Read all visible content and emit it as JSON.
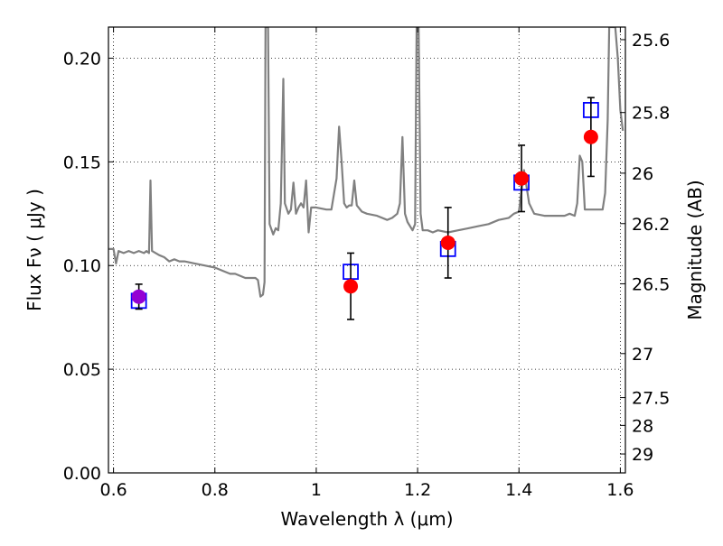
{
  "chart_data": {
    "type": "scatter",
    "title": "",
    "xlabel": "Wavelength  λ (μm)",
    "ylabel": "Flux  Fν  ( μJy )",
    "ylabel_right": "Magnitude (AB)",
    "xlim": [
      0.59,
      1.61
    ],
    "ylim": [
      0.0,
      0.215
    ],
    "grid": true,
    "x_ticks": [
      {
        "value": 0.6,
        "label": "0.6"
      },
      {
        "value": 0.8,
        "label": "0.8"
      },
      {
        "value": 1.0,
        "label": "1"
      },
      {
        "value": 1.2,
        "label": "1.2"
      },
      {
        "value": 1.4,
        "label": "1.4"
      },
      {
        "value": 1.6,
        "label": "1.6"
      }
    ],
    "y_ticks": [
      {
        "value": 0.0,
        "label": "0.00"
      },
      {
        "value": 0.05,
        "label": "0.05"
      },
      {
        "value": 0.1,
        "label": "0.10"
      },
      {
        "value": 0.15,
        "label": "0.15"
      },
      {
        "value": 0.2,
        "label": "0.20"
      }
    ],
    "right_ticks": [
      {
        "value": 25.6,
        "label": "25.6"
      },
      {
        "value": 25.8,
        "label": "25.8"
      },
      {
        "value": 26.0,
        "label": "26"
      },
      {
        "value": 26.2,
        "label": "26.2"
      },
      {
        "value": 26.5,
        "label": "26.5"
      },
      {
        "value": 27.0,
        "label": "27"
      },
      {
        "value": 27.5,
        "label": "27.5"
      },
      {
        "value": 28.0,
        "label": "28"
      },
      {
        "value": 29.0,
        "label": "29"
      }
    ],
    "colors": {
      "spectrum": "#808080",
      "model": "#0000ff",
      "observed": "#ff0000",
      "observed_first": "#9400d3",
      "errorbar": "#000000",
      "grid": "#000000"
    },
    "series": [
      {
        "type": "line",
        "points": [
          [
            0.59,
            0.108
          ],
          [
            0.6,
            0.108
          ],
          [
            0.605,
            0.101
          ],
          [
            0.61,
            0.107
          ],
          [
            0.62,
            0.106
          ],
          [
            0.63,
            0.107
          ],
          [
            0.64,
            0.106
          ],
          [
            0.65,
            0.107
          ],
          [
            0.66,
            0.106
          ],
          [
            0.665,
            0.107
          ],
          [
            0.67,
            0.106
          ],
          [
            0.673,
            0.141
          ],
          [
            0.676,
            0.107
          ],
          [
            0.69,
            0.105
          ],
          [
            0.7,
            0.104
          ],
          [
            0.71,
            0.102
          ],
          [
            0.72,
            0.103
          ],
          [
            0.73,
            0.102
          ],
          [
            0.74,
            0.102
          ],
          [
            0.76,
            0.101
          ],
          [
            0.78,
            0.1
          ],
          [
            0.8,
            0.099
          ],
          [
            0.82,
            0.097
          ],
          [
            0.83,
            0.096
          ],
          [
            0.84,
            0.096
          ],
          [
            0.86,
            0.094
          ],
          [
            0.88,
            0.094
          ],
          [
            0.885,
            0.093
          ],
          [
            0.89,
            0.085
          ],
          [
            0.895,
            0.086
          ],
          [
            0.898,
            0.092
          ],
          [
            0.9,
            0.215
          ],
          [
            0.905,
            0.215
          ],
          [
            0.908,
            0.12
          ],
          [
            0.915,
            0.115
          ],
          [
            0.92,
            0.118
          ],
          [
            0.925,
            0.117
          ],
          [
            0.93,
            0.13
          ],
          [
            0.935,
            0.19
          ],
          [
            0.938,
            0.13
          ],
          [
            0.945,
            0.125
          ],
          [
            0.95,
            0.127
          ],
          [
            0.955,
            0.14
          ],
          [
            0.96,
            0.125
          ],
          [
            0.965,
            0.128
          ],
          [
            0.97,
            0.13
          ],
          [
            0.975,
            0.128
          ],
          [
            0.98,
            0.141
          ],
          [
            0.985,
            0.116
          ],
          [
            0.99,
            0.128
          ],
          [
            1.0,
            0.128
          ],
          [
            1.02,
            0.127
          ],
          [
            1.03,
            0.127
          ],
          [
            1.04,
            0.142
          ],
          [
            1.045,
            0.167
          ],
          [
            1.05,
            0.15
          ],
          [
            1.055,
            0.13
          ],
          [
            1.06,
            0.128
          ],
          [
            1.065,
            0.129
          ],
          [
            1.07,
            0.129
          ],
          [
            1.075,
            0.141
          ],
          [
            1.08,
            0.129
          ],
          [
            1.09,
            0.126
          ],
          [
            1.1,
            0.125
          ],
          [
            1.12,
            0.124
          ],
          [
            1.14,
            0.122
          ],
          [
            1.15,
            0.123
          ],
          [
            1.16,
            0.125
          ],
          [
            1.165,
            0.13
          ],
          [
            1.17,
            0.162
          ],
          [
            1.175,
            0.125
          ],
          [
            1.18,
            0.121
          ],
          [
            1.19,
            0.117
          ],
          [
            1.195,
            0.12
          ],
          [
            1.198,
            0.215
          ],
          [
            1.202,
            0.215
          ],
          [
            1.206,
            0.125
          ],
          [
            1.21,
            0.117
          ],
          [
            1.22,
            0.117
          ],
          [
            1.23,
            0.116
          ],
          [
            1.24,
            0.117
          ],
          [
            1.26,
            0.116
          ],
          [
            1.28,
            0.117
          ],
          [
            1.3,
            0.118
          ],
          [
            1.32,
            0.119
          ],
          [
            1.34,
            0.12
          ],
          [
            1.36,
            0.122
          ],
          [
            1.38,
            0.123
          ],
          [
            1.39,
            0.125
          ],
          [
            1.4,
            0.126
          ],
          [
            1.41,
            0.146
          ],
          [
            1.42,
            0.13
          ],
          [
            1.43,
            0.125
          ],
          [
            1.45,
            0.124
          ],
          [
            1.47,
            0.124
          ],
          [
            1.49,
            0.124
          ],
          [
            1.5,
            0.125
          ],
          [
            1.51,
            0.124
          ],
          [
            1.515,
            0.13
          ],
          [
            1.52,
            0.153
          ],
          [
            1.525,
            0.15
          ],
          [
            1.53,
            0.127
          ],
          [
            1.54,
            0.127
          ],
          [
            1.55,
            0.127
          ],
          [
            1.56,
            0.127
          ],
          [
            1.565,
            0.127
          ],
          [
            1.57,
            0.135
          ],
          [
            1.575,
            0.17
          ],
          [
            1.578,
            0.215
          ],
          [
            1.59,
            0.215
          ],
          [
            1.595,
            0.2
          ],
          [
            1.6,
            0.175
          ],
          [
            1.605,
            0.165
          ]
        ]
      },
      {
        "type": "model_photometry",
        "marker": "open-square",
        "points": [
          {
            "x": 0.65,
            "y": 0.083
          },
          {
            "x": 1.068,
            "y": 0.097
          },
          {
            "x": 1.26,
            "y": 0.108
          },
          {
            "x": 1.405,
            "y": 0.14
          },
          {
            "x": 1.542,
            "y": 0.175
          }
        ]
      },
      {
        "type": "observed_photometry",
        "marker": "filled-circle",
        "points": [
          {
            "x": 0.65,
            "y": 0.085,
            "yerr": 0.006
          },
          {
            "x": 1.068,
            "y": 0.09,
            "yerr": 0.016
          },
          {
            "x": 1.26,
            "y": 0.111,
            "yerr": 0.017
          },
          {
            "x": 1.405,
            "y": 0.142,
            "yerr": 0.016
          },
          {
            "x": 1.542,
            "y": 0.162,
            "yerr": 0.019
          }
        ]
      }
    ]
  }
}
